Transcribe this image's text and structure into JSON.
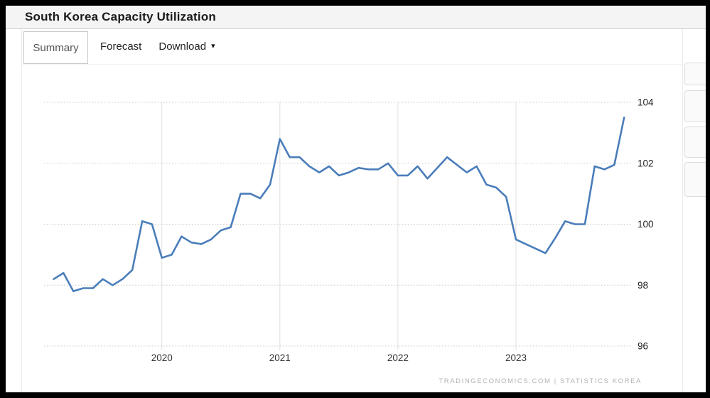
{
  "header": {
    "title": "South Korea Capacity Utilization"
  },
  "tabs": [
    {
      "label": "Summary",
      "active": true
    },
    {
      "label": "Forecast",
      "active": false
    },
    {
      "label": "Download",
      "active": false,
      "has_dropdown": true,
      "caret": "▾"
    }
  ],
  "chart_data": {
    "type": "line",
    "title": "South Korea Capacity Utilization",
    "series": [
      {
        "name": "Capacity Utilization",
        "color": "#4a7dba"
      }
    ],
    "x_tick_labels": [
      "2020",
      "2021",
      "2022",
      "2023"
    ],
    "y_ticks": [
      104,
      102,
      100,
      98,
      96
    ],
    "ylim": [
      96,
      104
    ],
    "grid": "horizontal-dotted, vertical-solid",
    "legend_position": "none",
    "source": "TRADINGECONOMICS.COM  |  STATISTICS  KOREA",
    "months": [
      "2019-02",
      "2019-03",
      "2019-04",
      "2019-05",
      "2019-06",
      "2019-07",
      "2019-08",
      "2019-09",
      "2019-10",
      "2019-11",
      "2019-12",
      "2020-01",
      "2020-02",
      "2020-03",
      "2020-04",
      "2020-05",
      "2020-06",
      "2020-07",
      "2020-08",
      "2020-09",
      "2020-10",
      "2020-11",
      "2020-12",
      "2021-01",
      "2021-02",
      "2021-03",
      "2021-04",
      "2021-05",
      "2021-06",
      "2021-07",
      "2021-08",
      "2021-09",
      "2021-10",
      "2021-11",
      "2021-12",
      "2022-01",
      "2022-02",
      "2022-03",
      "2022-04",
      "2022-05",
      "2022-06",
      "2022-07",
      "2022-08",
      "2022-09",
      "2022-10",
      "2022-11",
      "2022-12",
      "2023-01",
      "2023-02",
      "2023-03",
      "2023-04",
      "2023-05",
      "2023-06",
      "2023-07",
      "2023-08",
      "2023-09",
      "2023-10",
      "2023-11",
      "2023-12"
    ],
    "values": [
      98.2,
      98.4,
      97.8,
      97.9,
      97.9,
      98.2,
      98.0,
      98.2,
      98.5,
      100.1,
      100.0,
      98.9,
      99.0,
      99.6,
      99.4,
      99.35,
      99.5,
      99.8,
      99.9,
      101.0,
      101.0,
      100.85,
      101.3,
      102.8,
      102.2,
      102.2,
      101.9,
      101.7,
      101.9,
      101.6,
      101.7,
      101.85,
      101.8,
      101.8,
      102.0,
      101.6,
      101.6,
      101.9,
      101.5,
      101.85,
      102.2,
      101.95,
      101.7,
      101.9,
      101.3,
      101.2,
      100.9,
      99.5,
      99.35,
      99.2,
      99.05,
      99.55,
      100.1,
      100.0,
      100.0,
      101.9,
      101.8,
      101.95,
      103.5
    ]
  },
  "colors": {
    "line": "#4a7dba",
    "titlebar_bg": "#f4f4f4",
    "grid": "#c9c9c9",
    "frame": "#000000"
  }
}
